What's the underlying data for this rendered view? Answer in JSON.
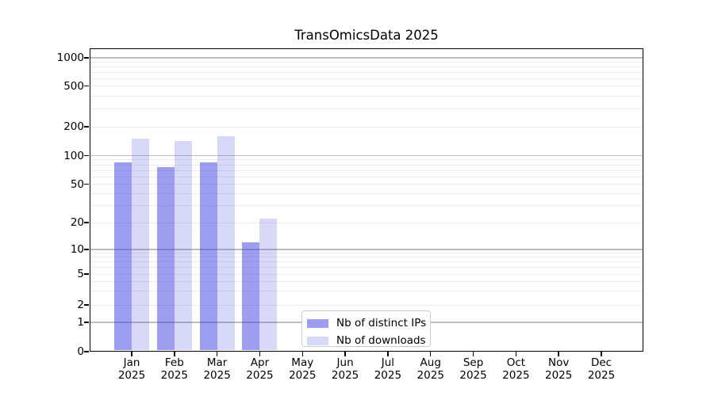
{
  "chart_data": {
    "type": "bar",
    "title": "TransOmicsData 2025",
    "categories": [
      "Jan",
      "Feb",
      "Mar",
      "Apr",
      "May",
      "Jun",
      "Jul",
      "Aug",
      "Sep",
      "Oct",
      "Nov",
      "Dec"
    ],
    "category_year": "2025",
    "series": [
      {
        "name": "Nb of distinct IPs",
        "color": "rgba(61,61,227,0.5)",
        "values": [
          85,
          76,
          85,
          12,
          0,
          0,
          0,
          0,
          0,
          0,
          0,
          0
        ]
      },
      {
        "name": "Nb of downloads",
        "color": "rgba(61,61,227,0.2)",
        "values": [
          150,
          142,
          160,
          22,
          0,
          0,
          0,
          0,
          0,
          0,
          0,
          0
        ]
      }
    ],
    "yticks": [
      0,
      1,
      2,
      5,
      10,
      20,
      50,
      100,
      200,
      500,
      1000
    ],
    "ylim": [
      0,
      1000
    ],
    "yscale": "symlog",
    "grid": true,
    "legend_position": "lower center-left",
    "colors": {
      "major_grid": "#bdbdbd",
      "minor_grid": "#ededed",
      "axis": "#000000",
      "text": "#000000",
      "background": "#ffffff"
    }
  }
}
